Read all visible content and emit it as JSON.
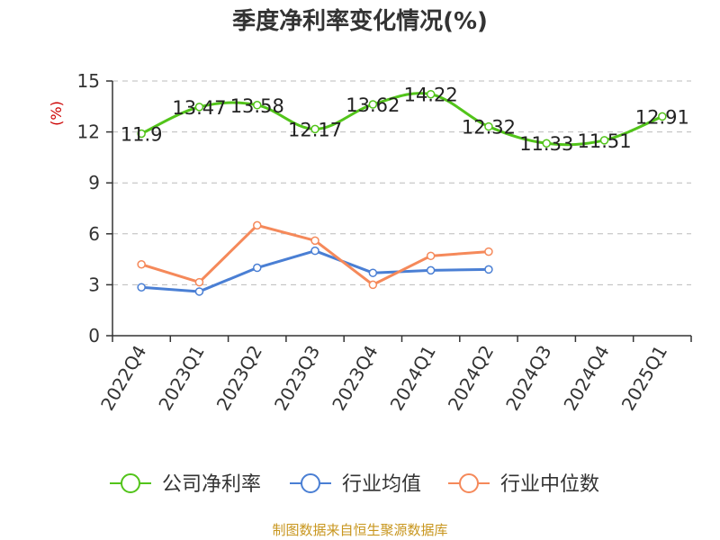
{
  "chart_data": {
    "type": "line",
    "title": "季度净利率变化情况(%)",
    "ylabel": "(%)",
    "ylabel_color": "#cc0000",
    "categories": [
      "2022Q4",
      "2023Q1",
      "2023Q2",
      "2023Q3",
      "2023Q4",
      "2024Q1",
      "2024Q2",
      "2024Q3",
      "2024Q4",
      "2025Q1"
    ],
    "ylim": [
      0,
      15
    ],
    "yticks": [
      0,
      3,
      6,
      9,
      12,
      15
    ],
    "ytick_labels": [
      "0",
      "3",
      "6",
      "9",
      "12",
      "15"
    ],
    "grid": true,
    "legend_position": "bottom",
    "series": [
      {
        "name": "公司净利率",
        "color": "#52c41a",
        "values": [
          11.9,
          13.47,
          13.58,
          12.17,
          13.62,
          14.22,
          12.32,
          11.33,
          11.51,
          12.91
        ],
        "labels": [
          "11.9",
          "13.47",
          "13.58",
          "12.17",
          "13.62",
          "14.22",
          "12.32",
          "11.33",
          "11.51",
          "12.91"
        ],
        "smooth": true
      },
      {
        "name": "行业均值",
        "color": "#4a7fd4",
        "values": [
          2.85,
          2.6,
          4.0,
          5.0,
          3.7,
          3.85,
          3.9,
          null,
          null,
          null
        ]
      },
      {
        "name": "行业中位数",
        "color": "#f5895a",
        "values": [
          4.2,
          3.15,
          6.5,
          5.6,
          3.0,
          4.7,
          4.95,
          null,
          null,
          null
        ]
      }
    ]
  },
  "source_text": "制图数据来自恒生聚源数据库",
  "source_color": "#c8961e"
}
